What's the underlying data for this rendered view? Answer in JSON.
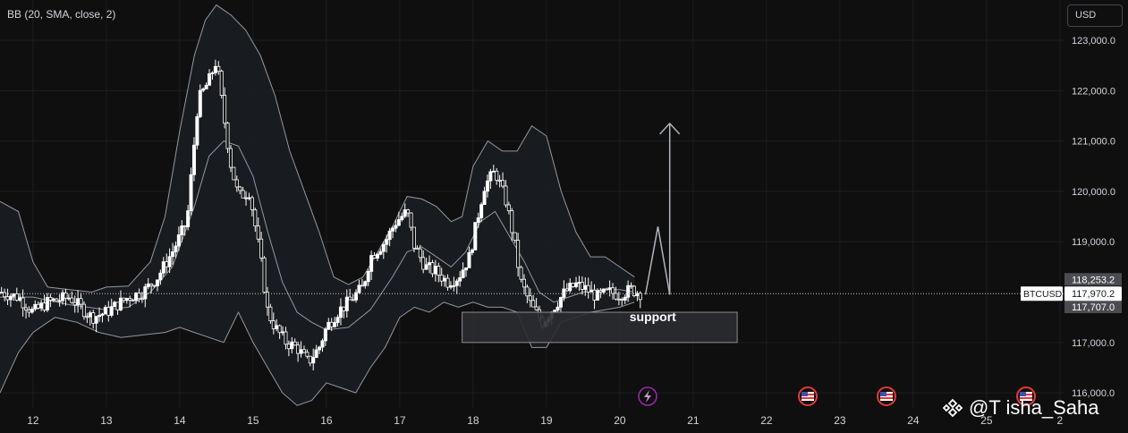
{
  "indicator": {
    "label": "BB (20, SMA, close, 2)"
  },
  "currency": {
    "label": "USD"
  },
  "watermark": {
    "text": "@T  isha_Saha"
  },
  "colors": {
    "background": "#0f0f0f",
    "candle": "#ffffff",
    "band": "#9598a1",
    "band_fill": "#1a1d22",
    "support_box": "#2a2c31",
    "axis_text": "#d1d4dc",
    "price_label_bg": "#ffffff",
    "band_label_bg": "#4a4c52",
    "event_icon": "#9c27b0",
    "flag_icon": "#d32f2f"
  },
  "chart_data": {
    "type": "candlestick",
    "symbol_label": "BTCUSD",
    "y_ticks": [
      "123,000.0",
      "122,000.0",
      "121,000.0",
      "120,000.0",
      "119,000.0",
      "117,000.0",
      "116,000.0"
    ],
    "x_ticks": [
      "12",
      "13",
      "14",
      "15",
      "16",
      "17",
      "18",
      "19",
      "20",
      "21",
      "22",
      "23",
      "24",
      "25",
      "2"
    ],
    "ylim": [
      115700,
      123800
    ],
    "xlim": [
      11.55,
      26.05
    ],
    "last_price": 117970.2,
    "last_price_label": "117,970.2",
    "band_labels": [
      {
        "value": 118253.2,
        "label": "118,253.2"
      },
      {
        "value": 117707.0,
        "label": "117,707.0"
      }
    ],
    "annotation": {
      "text": "support"
    },
    "support_zone": {
      "x_start": 17.85,
      "x_end": 21.6,
      "y_low": 117000,
      "y_high": 117600
    },
    "projection_path": [
      [
        20.35,
        117950
      ],
      [
        20.52,
        119300
      ],
      [
        20.68,
        117950
      ]
    ],
    "projection_arrow": [
      [
        20.68,
        117950
      ],
      [
        20.68,
        121350
      ]
    ],
    "bb_upper": [
      [
        11.55,
        119800
      ],
      [
        11.8,
        119600
      ],
      [
        12.0,
        118600
      ],
      [
        12.2,
        118100
      ],
      [
        12.5,
        118050
      ],
      [
        12.8,
        118000
      ],
      [
        13.0,
        118100
      ],
      [
        13.3,
        118120
      ],
      [
        13.6,
        118600
      ],
      [
        13.8,
        119500
      ],
      [
        14.0,
        121200
      ],
      [
        14.2,
        122700
      ],
      [
        14.35,
        123400
      ],
      [
        14.5,
        123700
      ],
      [
        14.7,
        123500
      ],
      [
        14.9,
        123200
      ],
      [
        15.1,
        122700
      ],
      [
        15.3,
        121900
      ],
      [
        15.5,
        120800
      ],
      [
        15.7,
        120000
      ],
      [
        15.9,
        119200
      ],
      [
        16.1,
        118300
      ],
      [
        16.3,
        118150
      ],
      [
        16.5,
        118300
      ],
      [
        16.7,
        118800
      ],
      [
        16.9,
        119300
      ],
      [
        17.1,
        119900
      ],
      [
        17.3,
        119850
      ],
      [
        17.5,
        119700
      ],
      [
        17.7,
        119400
      ],
      [
        17.85,
        119500
      ],
      [
        18.0,
        120500
      ],
      [
        18.2,
        121000
      ],
      [
        18.4,
        120800
      ],
      [
        18.6,
        120800
      ],
      [
        18.8,
        121300
      ],
      [
        19.0,
        121100
      ],
      [
        19.2,
        120000
      ],
      [
        19.4,
        119200
      ],
      [
        19.6,
        118700
      ],
      [
        19.8,
        118700
      ],
      [
        20.0,
        118500
      ],
      [
        20.2,
        118300
      ]
    ],
    "bb_lower": [
      [
        11.55,
        116000
      ],
      [
        11.8,
        116800
      ],
      [
        12.0,
        117200
      ],
      [
        12.3,
        117500
      ],
      [
        12.6,
        117400
      ],
      [
        12.9,
        117200
      ],
      [
        13.2,
        117100
      ],
      [
        13.5,
        117150
      ],
      [
        13.8,
        117200
      ],
      [
        14.0,
        117300
      ],
      [
        14.2,
        117200
      ],
      [
        14.4,
        117100
      ],
      [
        14.6,
        117000
      ],
      [
        14.8,
        117600
      ],
      [
        15.0,
        117000
      ],
      [
        15.2,
        116500
      ],
      [
        15.4,
        116000
      ],
      [
        15.6,
        115750
      ],
      [
        15.8,
        115850
      ],
      [
        16.0,
        116200
      ],
      [
        16.2,
        116100
      ],
      [
        16.4,
        116000
      ],
      [
        16.6,
        116500
      ],
      [
        16.8,
        116900
      ],
      [
        17.0,
        117500
      ],
      [
        17.2,
        117700
      ],
      [
        17.4,
        117600
      ],
      [
        17.6,
        117800
      ],
      [
        17.8,
        117700
      ],
      [
        18.0,
        117800
      ],
      [
        18.2,
        117700
      ],
      [
        18.4,
        117700
      ],
      [
        18.6,
        117600
      ],
      [
        18.8,
        116900
      ],
      [
        19.0,
        116900
      ],
      [
        19.2,
        117400
      ],
      [
        19.4,
        117500
      ],
      [
        19.6,
        117600
      ],
      [
        19.8,
        117650
      ],
      [
        20.0,
        117700
      ],
      [
        20.2,
        117800
      ]
    ],
    "bb_middle": [
      [
        11.55,
        117900
      ],
      [
        12.0,
        117900
      ],
      [
        12.5,
        117750
      ],
      [
        13.0,
        117650
      ],
      [
        13.3,
        117700
      ],
      [
        13.6,
        118000
      ],
      [
        13.9,
        118500
      ],
      [
        14.2,
        119700
      ],
      [
        14.4,
        120700
      ],
      [
        14.6,
        121000
      ],
      [
        14.8,
        120900
      ],
      [
        15.0,
        120300
      ],
      [
        15.2,
        119200
      ],
      [
        15.4,
        118200
      ],
      [
        15.6,
        117600
      ],
      [
        15.8,
        117400
      ],
      [
        16.0,
        117250
      ],
      [
        16.3,
        117300
      ],
      [
        16.6,
        117650
      ],
      [
        16.9,
        118300
      ],
      [
        17.1,
        118800
      ],
      [
        17.3,
        118900
      ],
      [
        17.5,
        118700
      ],
      [
        17.7,
        118500
      ],
      [
        17.9,
        118800
      ],
      [
        18.1,
        119400
      ],
      [
        18.3,
        119600
      ],
      [
        18.5,
        119100
      ],
      [
        18.7,
        118600
      ],
      [
        18.9,
        118000
      ],
      [
        19.1,
        117800
      ],
      [
        19.3,
        117900
      ],
      [
        19.5,
        118000
      ],
      [
        19.8,
        118050
      ],
      [
        20.0,
        118050
      ],
      [
        20.2,
        118000
      ]
    ],
    "close_path": [
      [
        11.55,
        118000
      ],
      [
        11.8,
        117900
      ],
      [
        12.0,
        117600
      ],
      [
        12.2,
        117800
      ],
      [
        12.5,
        117900
      ],
      [
        12.8,
        117500
      ],
      [
        13.0,
        117600
      ],
      [
        13.3,
        117900
      ],
      [
        13.5,
        118000
      ],
      [
        13.7,
        118300
      ],
      [
        13.9,
        118800
      ],
      [
        14.1,
        119400
      ],
      [
        14.25,
        121800
      ],
      [
        14.4,
        122200
      ],
      [
        14.5,
        122600
      ],
      [
        14.6,
        121500
      ],
      [
        14.7,
        120500
      ],
      [
        14.8,
        119900
      ],
      [
        14.95,
        120000
      ],
      [
        15.1,
        118700
      ],
      [
        15.2,
        117600
      ],
      [
        15.3,
        117300
      ],
      [
        15.45,
        117000
      ],
      [
        15.6,
        116900
      ],
      [
        15.75,
        116600
      ],
      [
        15.9,
        116900
      ],
      [
        16.0,
        117300
      ],
      [
        16.15,
        117600
      ],
      [
        16.3,
        117800
      ],
      [
        16.5,
        118100
      ],
      [
        16.6,
        118700
      ],
      [
        16.8,
        119000
      ],
      [
        16.95,
        119400
      ],
      [
        17.1,
        119600
      ],
      [
        17.2,
        118900
      ],
      [
        17.35,
        118500
      ],
      [
        17.5,
        118400
      ],
      [
        17.65,
        118200
      ],
      [
        17.8,
        118300
      ],
      [
        17.95,
        118700
      ],
      [
        18.05,
        119400
      ],
      [
        18.15,
        120100
      ],
      [
        18.3,
        120400
      ],
      [
        18.45,
        119800
      ],
      [
        18.55,
        119100
      ],
      [
        18.65,
        118200
      ],
      [
        18.8,
        117700
      ],
      [
        18.95,
        117400
      ],
      [
        19.1,
        117700
      ],
      [
        19.25,
        118000
      ],
      [
        19.4,
        118150
      ],
      [
        19.55,
        118050
      ],
      [
        19.7,
        117900
      ],
      [
        19.85,
        118000
      ],
      [
        20.0,
        117950
      ],
      [
        20.15,
        118050
      ],
      [
        20.3,
        117970
      ]
    ]
  }
}
